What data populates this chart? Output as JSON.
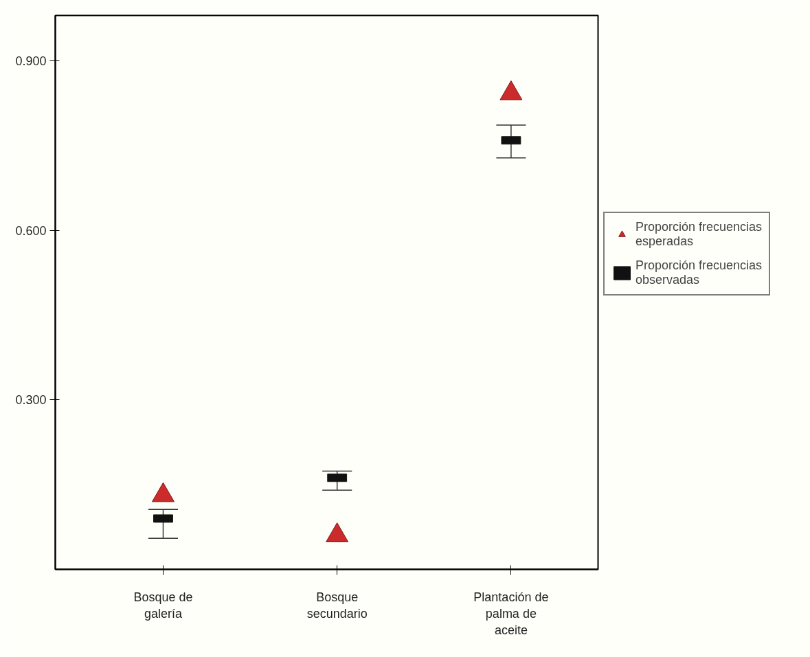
{
  "chart_data": {
    "type": "scatter",
    "categories": [
      "Bosque de galería",
      "Bosque secundario",
      "Plantación de palma de aceite"
    ],
    "ylim": [
      0,
      0.98
    ],
    "yticks": [
      {
        "value": 0.3,
        "label": "0.300"
      },
      {
        "value": 0.6,
        "label": "0.600"
      },
      {
        "value": 0.9,
        "label": "0.900"
      }
    ],
    "grid": false,
    "legend": "right",
    "series": [
      {
        "name": "Proporción frecuencias esperadas",
        "color": "#cc2b2b",
        "marker": "triangle",
        "values": [
          0.131,
          0.06,
          0.842
        ]
      },
      {
        "name": "Proporción frecuencias observadas",
        "color": "#111111",
        "marker": "square",
        "values": [
          0.09,
          0.162,
          0.759
        ],
        "errors": [
          [
            0.055,
            0.106
          ],
          [
            0.14,
            0.174
          ],
          [
            0.728,
            0.786
          ]
        ]
      }
    ]
  }
}
